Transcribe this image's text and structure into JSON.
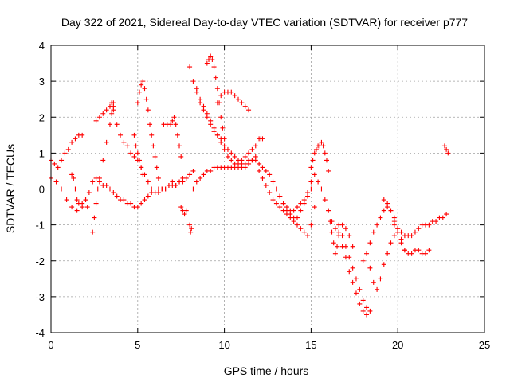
{
  "chart_data": {
    "type": "scatter",
    "title": "Day 322 of 2021, Sidereal Day-to-day VTEC variation (SDTVAR) for receiver p777",
    "xlabel": "GPS time / hours",
    "ylabel": "SDTVAR / TECUs",
    "xlim": [
      0,
      25
    ],
    "ylim": [
      -4,
      4
    ],
    "xticks": [
      0,
      5,
      10,
      15,
      20,
      25
    ],
    "yticks": [
      -4,
      -3,
      -2,
      -1,
      0,
      1,
      2,
      3,
      4
    ],
    "grid": true,
    "marker": "plus",
    "color": "#ff0000",
    "series": [
      {
        "name": "s1",
        "x": [
          0.0,
          0.3,
          0.6,
          0.9,
          1.2,
          1.5,
          1.8,
          2.0,
          2.2
        ],
        "y": [
          0.3,
          0.2,
          0.0,
          -0.3,
          -0.5,
          -0.6,
          -0.5,
          -0.3,
          -0.1
        ]
      },
      {
        "name": "s2",
        "x": [
          0.0,
          0.2,
          0.4,
          0.6,
          0.8,
          1.0,
          1.2,
          1.4,
          1.6,
          1.8
        ],
        "y": [
          0.8,
          0.7,
          0.6,
          0.8,
          1.0,
          1.1,
          1.3,
          1.4,
          1.5,
          1.5
        ]
      },
      {
        "name": "s3",
        "x": [
          1.2,
          1.3,
          1.4,
          1.5,
          1.6,
          1.8,
          2.0,
          2.1
        ],
        "y": [
          0.4,
          0.3,
          0.0,
          -0.3,
          -0.4,
          -0.4,
          -0.3,
          -0.5
        ]
      },
      {
        "name": "s4",
        "x": [
          2.4,
          2.5,
          2.6,
          2.7,
          2.8,
          3.0,
          3.2,
          3.4,
          3.5,
          3.6
        ],
        "y": [
          -1.2,
          -0.8,
          -0.4,
          0.0,
          0.3,
          0.8,
          1.3,
          1.8,
          2.1,
          2.3
        ]
      },
      {
        "name": "s5",
        "x": [
          2.6,
          2.8,
          3.0,
          3.2,
          3.4,
          3.5,
          3.6
        ],
        "y": [
          1.9,
          2.0,
          2.1,
          2.2,
          2.3,
          2.4,
          2.4
        ]
      },
      {
        "name": "s6",
        "x": [
          3.6,
          3.8,
          4.0,
          4.2,
          4.4,
          4.6,
          4.8,
          5.0,
          5.2,
          5.4,
          5.6,
          5.8,
          6.0,
          6.2,
          6.4,
          6.6,
          6.8,
          7.0,
          7.2,
          7.4,
          7.6,
          7.8,
          8.0,
          8.2
        ],
        "y": [
          2.2,
          1.8,
          1.5,
          1.3,
          1.2,
          1.0,
          0.9,
          0.8,
          0.6,
          0.4,
          0.2,
          0.0,
          -0.1,
          -0.1,
          0.0,
          0.0,
          0.1,
          0.2,
          0.1,
          0.2,
          0.3,
          0.3,
          0.4,
          0.5
        ]
      },
      {
        "name": "s7",
        "x": [
          2.4,
          2.6,
          2.8,
          3.0,
          3.2,
          3.4,
          3.6,
          3.8,
          4.0,
          4.2,
          4.4,
          4.6,
          4.8,
          5.0,
          5.2,
          5.4,
          5.6,
          5.8,
          6.0,
          6.2,
          6.4,
          6.6,
          6.8,
          7.0,
          7.2,
          7.4,
          7.6
        ],
        "y": [
          0.2,
          0.3,
          0.2,
          0.1,
          0.1,
          0.0,
          -0.1,
          -0.2,
          -0.3,
          -0.3,
          -0.4,
          -0.4,
          -0.5,
          -0.5,
          -0.4,
          -0.3,
          -0.2,
          -0.1,
          -0.1,
          0.0,
          0.0,
          0.0,
          0.1,
          0.1,
          0.1,
          0.2,
          0.2
        ]
      },
      {
        "name": "s8",
        "x": [
          5.0,
          5.1,
          5.2,
          5.3,
          5.4,
          5.5,
          5.6,
          5.7,
          5.8,
          5.9,
          6.0,
          6.1,
          6.2
        ],
        "y": [
          2.4,
          2.7,
          2.9,
          3.0,
          2.8,
          2.5,
          2.2,
          1.8,
          1.5,
          1.2,
          0.9,
          0.6,
          0.3
        ]
      },
      {
        "name": "s9",
        "x": [
          4.8,
          4.9,
          5.0,
          5.1,
          5.2,
          5.3
        ],
        "y": [
          1.5,
          1.2,
          1.0,
          0.8,
          0.6,
          0.4
        ]
      },
      {
        "name": "s10",
        "x": [
          6.5,
          6.7,
          6.9,
          7.0,
          7.1,
          7.2,
          7.3,
          7.4,
          7.5
        ],
        "y": [
          1.8,
          1.8,
          1.8,
          1.9,
          2.0,
          1.8,
          1.5,
          1.2,
          0.9
        ]
      },
      {
        "name": "s11",
        "x": [
          7.5,
          7.6,
          7.7,
          7.8
        ],
        "y": [
          -0.5,
          -0.6,
          -0.7,
          -0.6
        ]
      },
      {
        "name": "s12",
        "x": [
          8.0,
          8.05,
          8.1
        ],
        "y": [
          -1.0,
          -1.2,
          -1.1
        ]
      },
      {
        "name": "s13",
        "x": [
          8.0,
          8.2,
          8.4,
          8.6,
          8.8,
          9.0,
          9.2,
          9.4,
          9.6,
          9.8,
          10.0,
          10.2,
          10.4,
          10.6,
          10.8,
          11.0,
          11.2,
          11.4,
          11.6,
          11.8
        ],
        "y": [
          3.4,
          3.0,
          2.7,
          2.4,
          2.2,
          2.0,
          1.8,
          1.6,
          1.5,
          1.4,
          1.2,
          1.1,
          1.0,
          0.9,
          0.8,
          0.8,
          0.9,
          1.0,
          1.1,
          1.2
        ]
      },
      {
        "name": "s14",
        "x": [
          8.4,
          8.6,
          8.8,
          9.0,
          9.2,
          9.4,
          9.6,
          9.8,
          10.0,
          10.2,
          10.4,
          10.6,
          10.8,
          11.0,
          11.2,
          11.4,
          11.6,
          11.8
        ],
        "y": [
          2.8,
          2.5,
          2.3,
          2.1,
          1.9,
          1.7,
          1.5,
          1.3,
          1.1,
          0.9,
          0.8,
          0.7,
          0.7,
          0.6,
          0.6,
          0.7,
          0.8,
          0.9
        ]
      },
      {
        "name": "s15",
        "x": [
          9.0,
          9.1,
          9.2,
          9.3,
          9.4,
          9.5,
          9.6,
          9.7,
          9.8,
          9.9,
          10.0
        ],
        "y": [
          3.5,
          3.6,
          3.7,
          3.6,
          3.4,
          3.1,
          2.8,
          2.4,
          2.0,
          1.7,
          1.4
        ]
      },
      {
        "name": "s16",
        "x": [
          9.6,
          9.8,
          10.0,
          10.2,
          10.4,
          10.6,
          10.8,
          11.0,
          11.2,
          11.4
        ],
        "y": [
          2.4,
          2.6,
          2.7,
          2.7,
          2.7,
          2.6,
          2.5,
          2.4,
          2.3,
          2.2
        ]
      },
      {
        "name": "s17",
        "x": [
          8.2,
          8.4,
          8.6,
          8.8,
          9.0,
          9.2,
          9.4,
          9.6,
          9.8,
          10.0,
          10.2,
          10.4,
          10.6,
          10.8,
          11.0,
          11.2,
          11.4,
          11.6
        ],
        "y": [
          0.0,
          0.2,
          0.3,
          0.4,
          0.5,
          0.5,
          0.6,
          0.6,
          0.6,
          0.6,
          0.6,
          0.6,
          0.6,
          0.6,
          0.7,
          0.7,
          0.8,
          0.8
        ]
      },
      {
        "name": "s18",
        "x": [
          12.0,
          12.1,
          12.2
        ],
        "y": [
          1.4,
          1.4,
          1.4
        ]
      },
      {
        "name": "s19",
        "x": [
          11.8,
          12.0,
          12.2,
          12.4,
          12.6,
          12.8,
          13.0,
          13.2,
          13.4,
          13.6,
          13.8,
          14.0,
          14.2,
          14.4,
          14.6,
          14.8,
          15.0
        ],
        "y": [
          0.8,
          0.7,
          0.6,
          0.5,
          0.4,
          0.2,
          0.0,
          -0.2,
          -0.4,
          -0.6,
          -0.7,
          -0.8,
          -0.8,
          -0.6,
          -0.4,
          -0.1,
          0.2
        ]
      },
      {
        "name": "s20",
        "x": [
          12.0,
          12.2,
          12.4,
          12.6,
          12.8,
          13.0,
          13.2,
          13.4,
          13.6,
          13.8,
          14.0,
          14.2,
          14.4,
          14.6,
          14.8,
          15.0,
          15.2
        ],
        "y": [
          0.5,
          0.3,
          0.1,
          -0.1,
          -0.3,
          -0.4,
          -0.5,
          -0.6,
          -0.7,
          -0.8,
          -0.9,
          -1.0,
          -1.1,
          -1.2,
          -1.3,
          -1.0,
          -0.5
        ]
      },
      {
        "name": "s21",
        "x": [
          13.0,
          13.2,
          13.4,
          13.6,
          13.8,
          14.0,
          14.2,
          14.4,
          14.6,
          14.8,
          15.0
        ],
        "y": [
          0.0,
          -0.2,
          -0.4,
          -0.5,
          -0.6,
          -0.6,
          -0.5,
          -0.4,
          -0.3,
          -0.2,
          0.0
        ]
      },
      {
        "name": "s22",
        "x": [
          15.0,
          15.1,
          15.2,
          15.3,
          15.4,
          15.5,
          15.6,
          15.7,
          15.8,
          15.9,
          16.0
        ],
        "y": [
          0.6,
          0.8,
          1.0,
          1.1,
          1.2,
          1.2,
          1.3,
          1.2,
          1.0,
          0.8,
          0.5
        ]
      },
      {
        "name": "s23",
        "x": [
          15.2,
          15.4,
          15.6,
          15.8,
          16.0,
          16.2,
          16.4,
          16.6,
          16.8,
          17.0,
          17.2,
          17.4,
          17.6,
          17.8,
          18.0,
          18.2,
          18.4
        ],
        "y": [
          0.4,
          0.2,
          0.0,
          -0.3,
          -0.6,
          -0.9,
          -1.1,
          -1.3,
          -1.6,
          -1.9,
          -2.3,
          -2.6,
          -2.9,
          -3.2,
          -3.4,
          -3.5,
          -3.4
        ]
      },
      {
        "name": "s24",
        "x": [
          16.0,
          16.1,
          16.2,
          16.3,
          16.4,
          16.5,
          16.6,
          16.8,
          17.0,
          17.2,
          17.4
        ],
        "y": [
          -0.6,
          -0.9,
          -1.2,
          -1.5,
          -1.8,
          -1.6,
          -1.2,
          -1.0,
          -1.1,
          -1.3,
          -1.6
        ]
      },
      {
        "name": "s25",
        "x": [
          16.6,
          16.8,
          17.0,
          17.2,
          17.4,
          17.6,
          17.8,
          18.0,
          18.2
        ],
        "y": [
          -1.0,
          -1.3,
          -1.6,
          -1.9,
          -2.2,
          -2.5,
          -2.8,
          -3.1,
          -3.3
        ]
      },
      {
        "name": "s26",
        "x": [
          18.0,
          18.2,
          18.4,
          18.6,
          18.8,
          19.0,
          19.2,
          19.4,
          19.6,
          19.8,
          20.0,
          20.2,
          20.4
        ],
        "y": [
          -2.0,
          -1.8,
          -1.5,
          -1.2,
          -1.0,
          -0.8,
          -0.6,
          -0.5,
          -0.6,
          -0.8,
          -1.1,
          -1.4,
          -1.7
        ]
      },
      {
        "name": "s27",
        "x": [
          18.4,
          18.6,
          18.8,
          19.0,
          19.2,
          19.4,
          19.6,
          19.8,
          20.0
        ],
        "y": [
          -2.2,
          -2.6,
          -2.8,
          -2.5,
          -2.1,
          -1.8,
          -1.5,
          -1.3,
          -1.2
        ]
      },
      {
        "name": "s28",
        "x": [
          19.2,
          19.4,
          19.6,
          19.8,
          20.0,
          20.2,
          20.4,
          20.6,
          20.8,
          21.0,
          21.2,
          21.4,
          21.6,
          21.8
        ],
        "y": [
          -0.3,
          -0.4,
          -0.6,
          -0.9,
          -1.2,
          -1.5,
          -1.7,
          -1.8,
          -1.8,
          -1.7,
          -1.7,
          -1.8,
          -1.8,
          -1.7
        ]
      },
      {
        "name": "s29",
        "x": [
          19.8,
          20.0,
          20.2,
          20.4,
          20.6,
          20.8,
          21.0,
          21.2,
          21.4,
          21.6,
          21.8,
          22.0,
          22.2,
          22.4,
          22.6,
          22.8
        ],
        "y": [
          -1.0,
          -1.1,
          -1.2,
          -1.3,
          -1.3,
          -1.3,
          -1.2,
          -1.1,
          -1.0,
          -1.0,
          -1.0,
          -0.9,
          -0.9,
          -0.8,
          -0.8,
          -0.7
        ]
      },
      {
        "name": "s30",
        "x": [
          22.7,
          22.8,
          22.9
        ],
        "y": [
          1.2,
          1.1,
          1.0
        ]
      }
    ]
  }
}
